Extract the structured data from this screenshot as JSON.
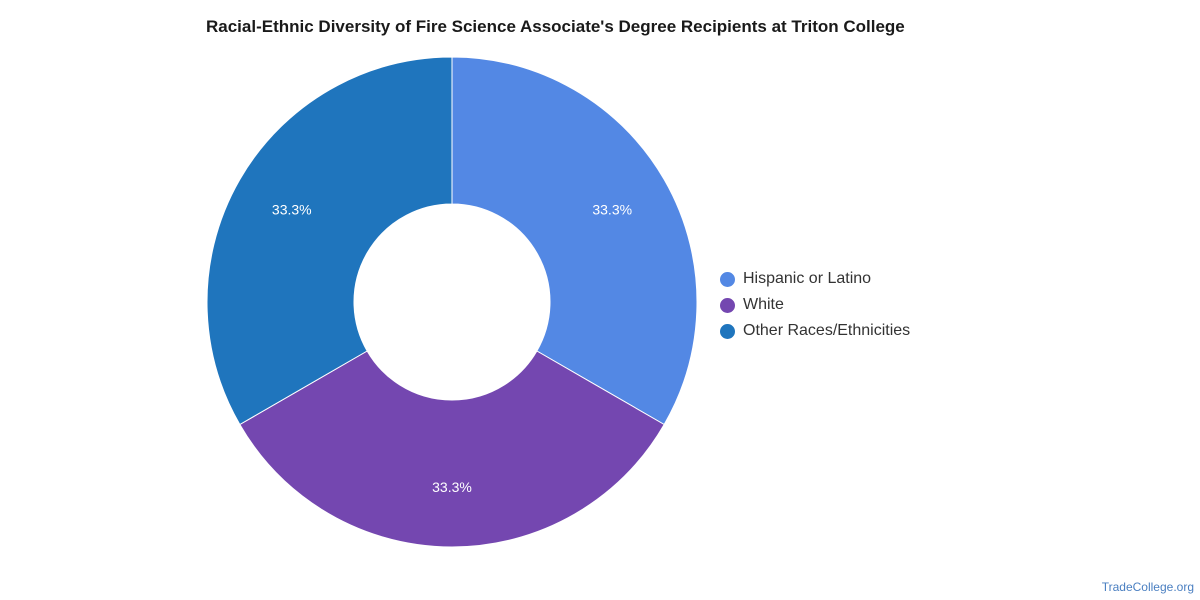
{
  "chart_data": {
    "type": "pie",
    "title": "Racial-Ethnic Diversity of Fire Science Associate's Degree Recipients at Triton College",
    "donut": true,
    "legend_position": "right",
    "slices": [
      {
        "label": "Hispanic or Latino",
        "value": 33.3,
        "display": "33.3%",
        "color": "#5388e4"
      },
      {
        "label": "White",
        "value": 33.3,
        "display": "33.3%",
        "color": "#7447b0"
      },
      {
        "label": "Other Races/Ethnicities",
        "value": 33.3,
        "display": "33.3%",
        "color": "#1f75bd"
      }
    ]
  },
  "watermark": "TradeCollege.org"
}
